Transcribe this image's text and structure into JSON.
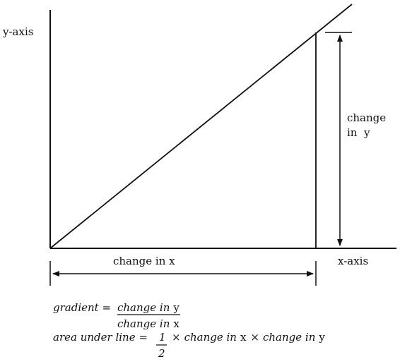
{
  "axes": {
    "y_label": "y-axis",
    "x_label": "x-axis"
  },
  "annotations": {
    "change_in_y_line1": "change",
    "change_in_y_line2": "in  y",
    "change_in_x": "change in x"
  },
  "formulas": {
    "gradient_lhs": "gradient =",
    "gradient_num_italic": "change in",
    "gradient_num_var": "y",
    "gradient_den_italic": "change in",
    "gradient_den_var": "x",
    "area_lhs": "area under line =",
    "area_frac_num": "1",
    "area_frac_den": "2",
    "area_times1": "×",
    "area_term1_italic": "change in",
    "area_term1_var": "x",
    "area_times2": "×",
    "area_term2_italic": "change in",
    "area_term2_var": "y"
  },
  "colors": {
    "ink": "#111111",
    "background": "#ffffff"
  }
}
